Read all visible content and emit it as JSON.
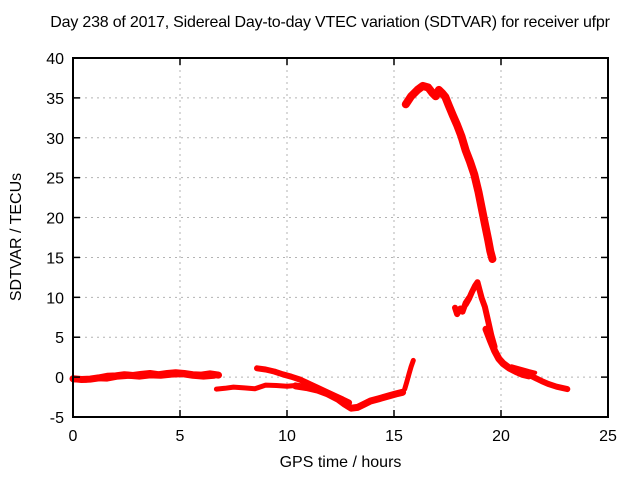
{
  "chart_data": {
    "type": "scatter",
    "title": "Day 238 of 2017, Sidereal Day-to-day VTEC variation (SDTVAR) for receiver ufpr",
    "xlabel": "GPS time / hours",
    "ylabel": "SDTVAR / TECUs",
    "xlim": [
      0,
      25
    ],
    "ylim": [
      -5,
      40
    ],
    "xticks": [
      0,
      5,
      10,
      15,
      20,
      25
    ],
    "yticks": [
      -5,
      0,
      5,
      10,
      15,
      20,
      25,
      30,
      35,
      40
    ],
    "grid": true,
    "legend_position": "none",
    "colors": {
      "points": "#ff0000",
      "grid": "#b3b3b3",
      "border": "#000000",
      "background": "#ffffff",
      "text": "#000000"
    },
    "series": [
      {
        "name": "band-early-upper",
        "w": 7,
        "points": [
          [
            0,
            -0.2
          ],
          [
            0.4,
            -0.3
          ],
          [
            0.8,
            -0.25
          ],
          [
            1.2,
            -0.1
          ],
          [
            1.6,
            0.1
          ],
          [
            2.0,
            0.15
          ],
          [
            2.4,
            0.3
          ],
          [
            2.8,
            0.2
          ],
          [
            3.2,
            0.35
          ],
          [
            3.6,
            0.45
          ],
          [
            4.0,
            0.3
          ],
          [
            4.4,
            0.45
          ],
          [
            4.8,
            0.55
          ],
          [
            5.2,
            0.45
          ],
          [
            5.6,
            0.3
          ],
          [
            6.0,
            0.25
          ],
          [
            6.4,
            0.4
          ],
          [
            6.8,
            0.25
          ]
        ]
      },
      {
        "name": "band-early-lower",
        "w": 5,
        "points": [
          [
            0.1,
            -0.35
          ],
          [
            0.6,
            -0.4
          ],
          [
            1.1,
            -0.2
          ],
          [
            1.6,
            -0.25
          ],
          [
            2.1,
            0.0
          ],
          [
            2.6,
            0.1
          ],
          [
            3.1,
            0.0
          ],
          [
            3.6,
            0.15
          ],
          [
            4.1,
            0.1
          ],
          [
            4.6,
            0.25
          ],
          [
            5.1,
            0.3
          ],
          [
            5.6,
            0.1
          ],
          [
            6.1,
            0.0
          ],
          [
            6.6,
            0.1
          ]
        ]
      },
      {
        "name": "band-7-to-10",
        "w": 5,
        "points": [
          [
            6.7,
            -1.5
          ],
          [
            7.1,
            -1.4
          ],
          [
            7.5,
            -1.25
          ],
          [
            8.0,
            -1.35
          ],
          [
            8.5,
            -1.45
          ],
          [
            9.0,
            -1.0
          ],
          [
            9.5,
            -1.05
          ],
          [
            10.0,
            -1.15
          ],
          [
            10.4,
            -1.05
          ]
        ]
      },
      {
        "name": "descend-9-to-13",
        "w": 6,
        "points": [
          [
            8.6,
            1.1
          ],
          [
            9.0,
            0.95
          ],
          [
            9.4,
            0.7
          ],
          [
            9.8,
            0.35
          ],
          [
            10.2,
            0.05
          ],
          [
            10.6,
            -0.3
          ],
          [
            11.0,
            -0.8
          ],
          [
            11.4,
            -1.3
          ],
          [
            11.8,
            -1.8
          ],
          [
            12.2,
            -2.3
          ],
          [
            12.6,
            -2.8
          ],
          [
            12.9,
            -3.2
          ]
        ]
      },
      {
        "name": "dip-around-13",
        "w": 7,
        "points": [
          [
            10.4,
            -1.1
          ],
          [
            10.9,
            -1.3
          ],
          [
            11.4,
            -1.6
          ],
          [
            11.9,
            -2.1
          ],
          [
            12.4,
            -2.8
          ],
          [
            12.7,
            -3.4
          ],
          [
            13.0,
            -3.9
          ],
          [
            13.3,
            -3.8
          ],
          [
            13.6,
            -3.4
          ],
          [
            13.9,
            -3.0
          ],
          [
            14.3,
            -2.7
          ],
          [
            14.7,
            -2.4
          ],
          [
            15.1,
            -2.1
          ],
          [
            15.4,
            -1.9
          ]
        ]
      },
      {
        "name": "spike-at-16",
        "w": 5,
        "points": [
          [
            15.5,
            -1.5
          ],
          [
            15.6,
            -0.6
          ],
          [
            15.7,
            0.4
          ],
          [
            15.8,
            1.3
          ],
          [
            15.9,
            2.1
          ]
        ]
      },
      {
        "name": "main-arc-peak",
        "w": 8,
        "points": [
          [
            15.55,
            34.2
          ],
          [
            15.8,
            35.2
          ],
          [
            16.1,
            36.0
          ],
          [
            16.35,
            36.5
          ],
          [
            16.6,
            36.3
          ],
          [
            16.8,
            35.6
          ],
          [
            16.95,
            35.2
          ],
          [
            17.1,
            36.0
          ],
          [
            17.25,
            35.6
          ],
          [
            17.4,
            35.1
          ],
          [
            17.55,
            34.1
          ],
          [
            17.75,
            32.8
          ],
          [
            17.95,
            31.6
          ],
          [
            18.15,
            30.2
          ],
          [
            18.35,
            28.4
          ],
          [
            18.55,
            27.0
          ],
          [
            18.75,
            25.4
          ],
          [
            18.95,
            23.2
          ],
          [
            19.1,
            21.2
          ],
          [
            19.25,
            19.2
          ],
          [
            19.4,
            17.2
          ],
          [
            19.5,
            15.8
          ],
          [
            19.6,
            14.8
          ]
        ]
      },
      {
        "name": "mid-cluster-hook",
        "w": 6,
        "points": [
          [
            17.85,
            8.7
          ],
          [
            17.95,
            7.9
          ],
          [
            18.1,
            8.6
          ],
          [
            18.2,
            8.2
          ],
          [
            18.35,
            9.3
          ],
          [
            18.5,
            9.9
          ]
        ]
      },
      {
        "name": "mid-cluster-peak",
        "w": 6,
        "points": [
          [
            18.35,
            9.1
          ],
          [
            18.5,
            9.8
          ],
          [
            18.65,
            10.7
          ],
          [
            18.8,
            11.5
          ],
          [
            18.9,
            11.9
          ],
          [
            19.0,
            10.9
          ],
          [
            19.1,
            9.9
          ],
          [
            19.25,
            8.8
          ],
          [
            19.4,
            7.0
          ],
          [
            19.55,
            5.2
          ],
          [
            19.7,
            3.8
          ]
        ]
      },
      {
        "name": "decay-19-to-21",
        "w": 7,
        "points": [
          [
            19.3,
            6.0
          ],
          [
            19.5,
            4.6
          ],
          [
            19.7,
            3.3
          ],
          [
            19.9,
            2.3
          ],
          [
            20.1,
            1.7
          ],
          [
            20.4,
            1.1
          ],
          [
            20.7,
            0.7
          ],
          [
            21.0,
            0.35
          ],
          [
            21.3,
            0.15
          ]
        ]
      },
      {
        "name": "short-band-21",
        "w": 4,
        "points": [
          [
            20.5,
            1.35
          ],
          [
            20.9,
            1.05
          ],
          [
            21.3,
            0.75
          ],
          [
            21.6,
            0.55
          ]
        ]
      },
      {
        "name": "tail-band-22-23",
        "w": 6,
        "points": [
          [
            21.3,
            0.3
          ],
          [
            21.6,
            -0.1
          ],
          [
            21.9,
            -0.5
          ],
          [
            22.2,
            -0.85
          ],
          [
            22.6,
            -1.2
          ],
          [
            23.1,
            -1.5
          ]
        ]
      }
    ]
  }
}
